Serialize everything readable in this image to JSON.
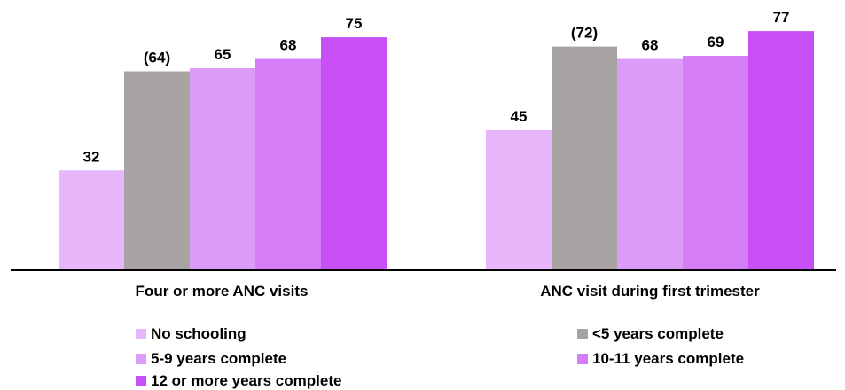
{
  "chart_data": {
    "type": "bar",
    "categories": [
      "Four or more ANC visits",
      "ANC visit during first trimester"
    ],
    "series": [
      {
        "name": "No schooling",
        "values": [
          32,
          45
        ],
        "labels": [
          "32",
          "45"
        ],
        "color": "#e7b6fb"
      },
      {
        "name": "<5 years complete",
        "values": [
          64,
          72
        ],
        "labels": [
          "(64)",
          "(72)"
        ],
        "color": "#a8a3a3"
      },
      {
        "name": "5-9 years complete",
        "values": [
          65,
          68
        ],
        "labels": [
          "65",
          "68"
        ],
        "color": "#dc9df8"
      },
      {
        "name": "10-11 years complete",
        "values": [
          68,
          69
        ],
        "labels": [
          "68",
          "69"
        ],
        "color": "#d47df7"
      },
      {
        "name": "12 or more years complete",
        "values": [
          75,
          77
        ],
        "labels": [
          "75",
          "77"
        ],
        "color": "#c84ff6"
      }
    ],
    "ylim": [
      0,
      100
    ],
    "grid": false,
    "legend_position": "bottom",
    "title": "",
    "xlabel": "",
    "ylabel": ""
  }
}
